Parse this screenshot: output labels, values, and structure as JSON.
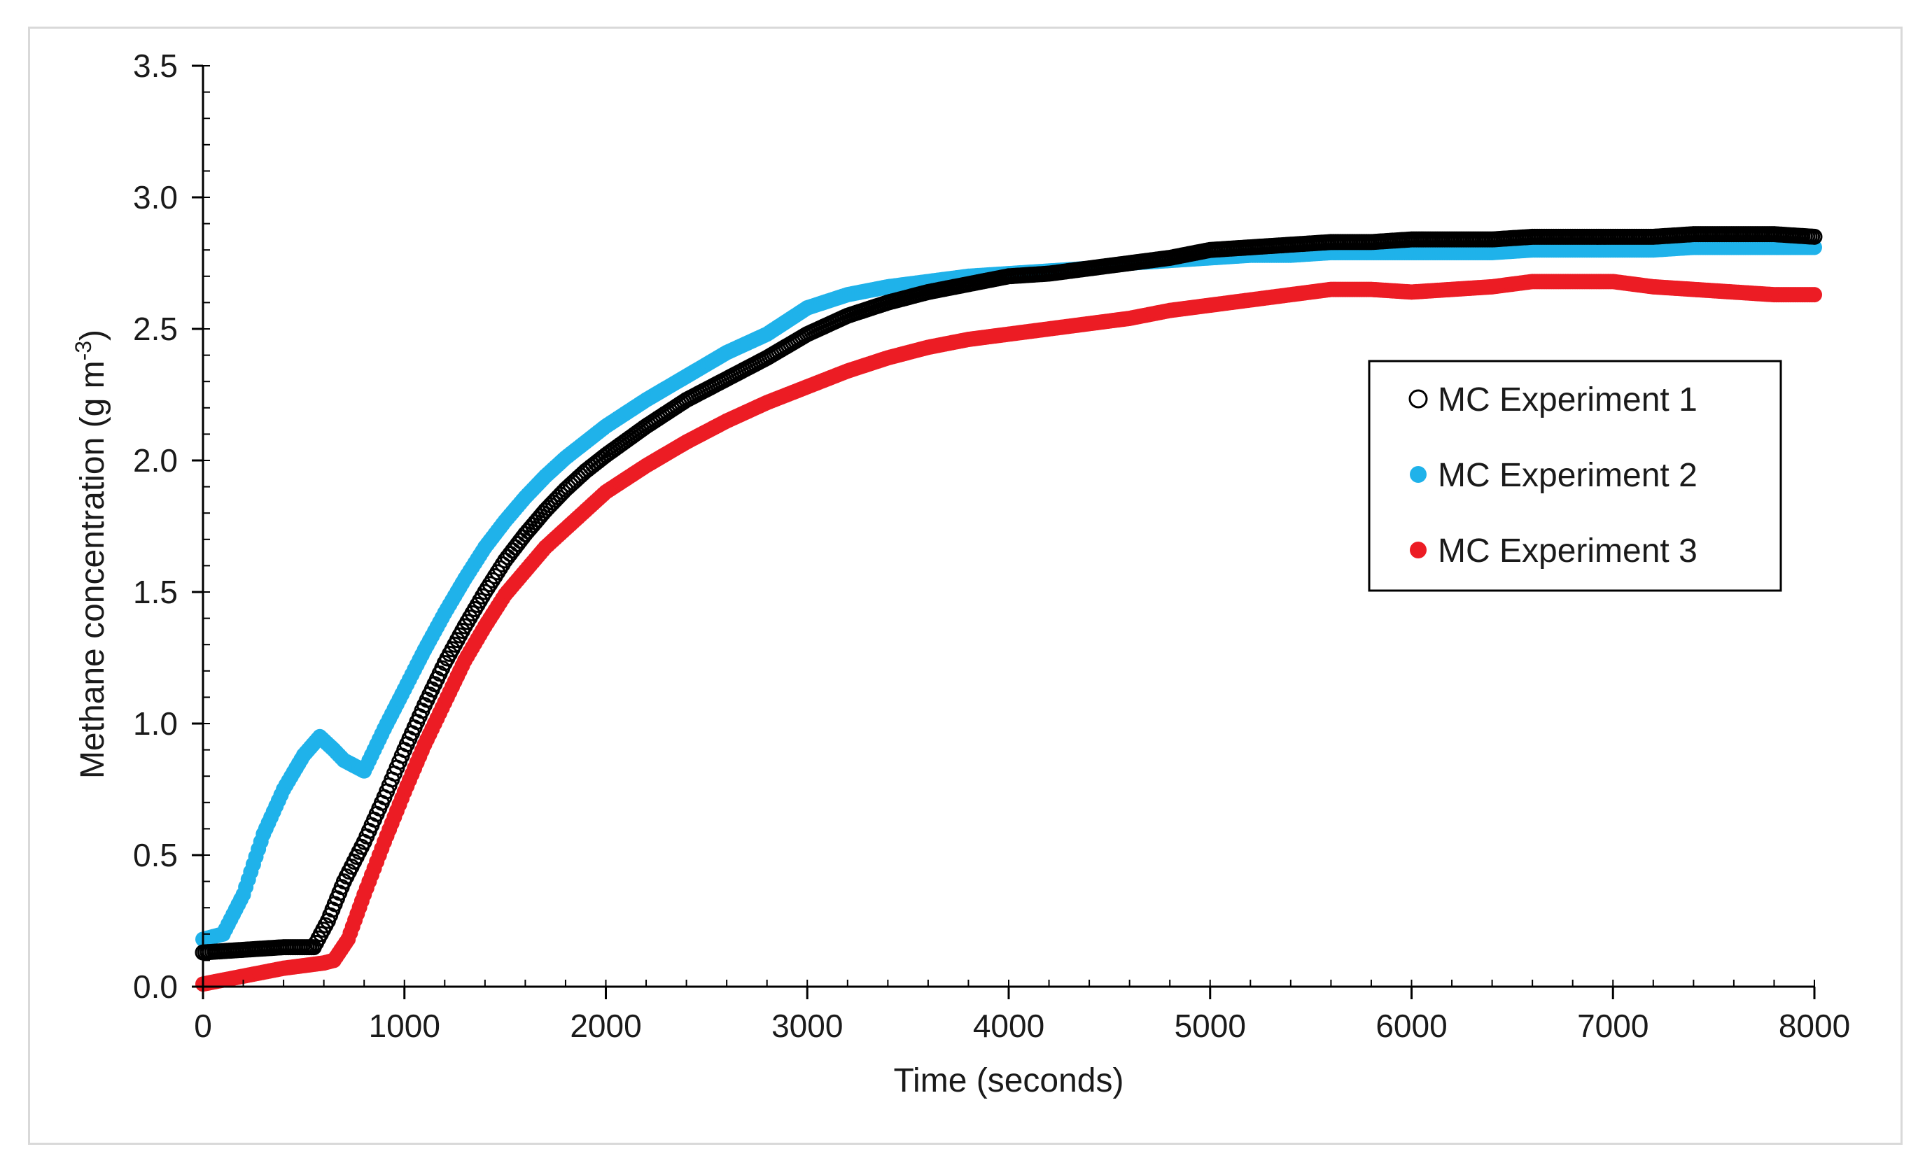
{
  "chart_data": {
    "type": "scatter",
    "title": "",
    "xlabel": "Time (seconds)",
    "ylabel_main": "Methane concentration (g m",
    "ylabel_sup": "-3",
    "ylabel_tail": ")",
    "xlim": [
      0,
      8000
    ],
    "ylim": [
      0,
      3.5
    ],
    "xticks": [
      "0",
      "1000",
      "2000",
      "3000",
      "4000",
      "5000",
      "6000",
      "7000",
      "8000"
    ],
    "yticks": [
      "0.0",
      "0.5",
      "1.0",
      "1.5",
      "2.0",
      "2.5",
      "3.0",
      "3.5"
    ],
    "grid": false,
    "legend_position": "center-right",
    "series": [
      {
        "name": "MC Experiment 1",
        "marker": "open-circle",
        "color": "#000000",
        "x": [
          0,
          200,
          400,
          550,
          620,
          700,
          800,
          900,
          1000,
          1100,
          1200,
          1300,
          1400,
          1500,
          1600,
          1700,
          1800,
          1900,
          2000,
          2200,
          2400,
          2600,
          2800,
          3000,
          3200,
          3400,
          3600,
          3800,
          4000,
          4200,
          4400,
          4600,
          4800,
          5000,
          5200,
          5400,
          5600,
          5800,
          6000,
          6200,
          6400,
          6600,
          6800,
          7000,
          7200,
          7400,
          7600,
          7800,
          8000
        ],
        "y": [
          0.13,
          0.14,
          0.15,
          0.15,
          0.25,
          0.4,
          0.55,
          0.72,
          0.9,
          1.07,
          1.23,
          1.37,
          1.5,
          1.62,
          1.72,
          1.81,
          1.89,
          1.96,
          2.02,
          2.13,
          2.23,
          2.31,
          2.39,
          2.48,
          2.55,
          2.6,
          2.64,
          2.67,
          2.7,
          2.71,
          2.73,
          2.75,
          2.77,
          2.8,
          2.81,
          2.82,
          2.83,
          2.83,
          2.84,
          2.84,
          2.84,
          2.85,
          2.85,
          2.85,
          2.85,
          2.86,
          2.86,
          2.86,
          2.85
        ]
      },
      {
        "name": "MC Experiment 2",
        "marker": "filled-circle",
        "color": "#1fb2ea",
        "x": [
          0,
          100,
          200,
          300,
          400,
          500,
          580,
          650,
          700,
          800,
          900,
          1000,
          1100,
          1200,
          1300,
          1400,
          1500,
          1600,
          1700,
          1800,
          1900,
          2000,
          2200,
          2400,
          2600,
          2800,
          3000,
          3200,
          3400,
          3600,
          3800,
          4000,
          4200,
          4400,
          4600,
          4800,
          5000,
          5200,
          5400,
          5600,
          5800,
          6000,
          6200,
          6400,
          6600,
          6800,
          7000,
          7200,
          7400,
          7600,
          7800,
          8000
        ],
        "y": [
          0.18,
          0.2,
          0.35,
          0.58,
          0.75,
          0.88,
          0.95,
          0.9,
          0.86,
          0.82,
          0.98,
          1.13,
          1.28,
          1.42,
          1.55,
          1.67,
          1.77,
          1.86,
          1.94,
          2.01,
          2.07,
          2.13,
          2.23,
          2.32,
          2.41,
          2.48,
          2.58,
          2.63,
          2.66,
          2.68,
          2.7,
          2.71,
          2.72,
          2.73,
          2.75,
          2.76,
          2.77,
          2.78,
          2.78,
          2.79,
          2.79,
          2.79,
          2.79,
          2.79,
          2.8,
          2.8,
          2.8,
          2.8,
          2.81,
          2.81,
          2.81,
          2.81
        ]
      },
      {
        "name": "MC Experiment 3",
        "marker": "filled-circle",
        "color": "#ec1c24",
        "x": [
          0,
          200,
          400,
          600,
          650,
          720,
          800,
          900,
          1000,
          1100,
          1200,
          1300,
          1400,
          1500,
          1600,
          1700,
          1800,
          1900,
          2000,
          2200,
          2400,
          2600,
          2800,
          3000,
          3200,
          3400,
          3600,
          3800,
          4000,
          4200,
          4400,
          4600,
          4800,
          5000,
          5200,
          5400,
          5600,
          5800,
          6000,
          6200,
          6400,
          6600,
          6800,
          7000,
          7200,
          7400,
          7600,
          7800,
          8000
        ],
        "y": [
          0.01,
          0.04,
          0.07,
          0.09,
          0.1,
          0.18,
          0.35,
          0.55,
          0.74,
          0.92,
          1.08,
          1.24,
          1.37,
          1.49,
          1.58,
          1.67,
          1.74,
          1.81,
          1.88,
          1.98,
          2.07,
          2.15,
          2.22,
          2.28,
          2.34,
          2.39,
          2.43,
          2.46,
          2.48,
          2.5,
          2.52,
          2.54,
          2.57,
          2.59,
          2.61,
          2.63,
          2.65,
          2.65,
          2.64,
          2.65,
          2.66,
          2.68,
          2.68,
          2.68,
          2.66,
          2.65,
          2.64,
          2.63,
          2.63
        ]
      }
    ]
  }
}
